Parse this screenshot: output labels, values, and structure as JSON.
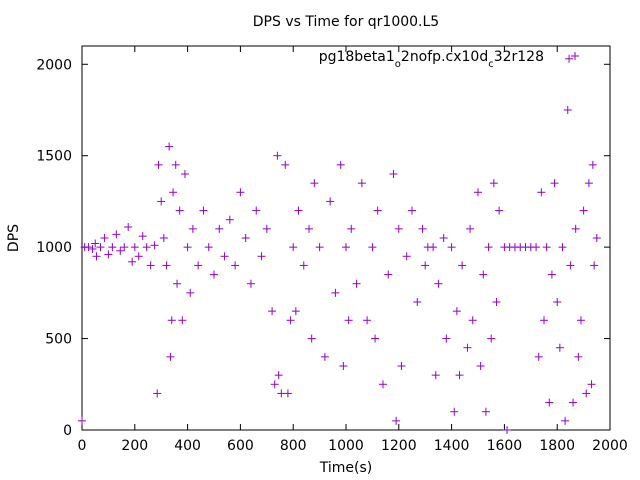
{
  "chart_data": {
    "type": "scatter",
    "title": "DPS vs Time for qr1000.L5",
    "xlabel": "Time(s)",
    "ylabel": "DPS",
    "xlim": [
      0,
      2000
    ],
    "ylim": [
      0,
      2100
    ],
    "xticks": [
      0,
      200,
      400,
      600,
      800,
      1000,
      1200,
      1400,
      1600,
      1800,
      2000
    ],
    "yticks": [
      0,
      500,
      1000,
      1500,
      2000
    ],
    "grid": false,
    "legend_position": "top-right",
    "marker": "+",
    "color": "#9400d3",
    "series": [
      {
        "name_parts": [
          "pg18beta1",
          "o",
          "2nofp.cx10d",
          "c",
          "32r128"
        ],
        "points": [
          [
            0,
            50
          ],
          [
            10,
            1000
          ],
          [
            25,
            1000
          ],
          [
            40,
            990
          ],
          [
            50,
            1020
          ],
          [
            55,
            950
          ],
          [
            70,
            1000
          ],
          [
            85,
            1050
          ],
          [
            100,
            960
          ],
          [
            115,
            1000
          ],
          [
            130,
            1070
          ],
          [
            145,
            980
          ],
          [
            160,
            1000
          ],
          [
            175,
            1110
          ],
          [
            190,
            920
          ],
          [
            200,
            1000
          ],
          [
            215,
            950
          ],
          [
            230,
            1060
          ],
          [
            245,
            1000
          ],
          [
            260,
            900
          ],
          [
            275,
            1010
          ],
          [
            285,
            200
          ],
          [
            290,
            1450
          ],
          [
            300,
            1250
          ],
          [
            310,
            1050
          ],
          [
            320,
            900
          ],
          [
            330,
            1550
          ],
          [
            335,
            400
          ],
          [
            340,
            600
          ],
          [
            345,
            1300
          ],
          [
            355,
            1450
          ],
          [
            360,
            800
          ],
          [
            370,
            1200
          ],
          [
            380,
            600
          ],
          [
            390,
            1400
          ],
          [
            400,
            1000
          ],
          [
            410,
            750
          ],
          [
            420,
            1100
          ],
          [
            440,
            900
          ],
          [
            460,
            1200
          ],
          [
            480,
            1000
          ],
          [
            500,
            850
          ],
          [
            520,
            1100
          ],
          [
            540,
            950
          ],
          [
            560,
            1150
          ],
          [
            580,
            900
          ],
          [
            600,
            1300
          ],
          [
            620,
            1050
          ],
          [
            640,
            800
          ],
          [
            660,
            1200
          ],
          [
            680,
            950
          ],
          [
            700,
            1100
          ],
          [
            720,
            650
          ],
          [
            730,
            250
          ],
          [
            740,
            1500
          ],
          [
            745,
            300
          ],
          [
            755,
            200
          ],
          [
            770,
            1450
          ],
          [
            780,
            200
          ],
          [
            790,
            600
          ],
          [
            800,
            1000
          ],
          [
            810,
            650
          ],
          [
            820,
            1200
          ],
          [
            840,
            900
          ],
          [
            860,
            1100
          ],
          [
            870,
            500
          ],
          [
            880,
            1350
          ],
          [
            900,
            1000
          ],
          [
            920,
            400
          ],
          [
            940,
            1250
          ],
          [
            960,
            750
          ],
          [
            980,
            1450
          ],
          [
            990,
            350
          ],
          [
            1000,
            1000
          ],
          [
            1010,
            600
          ],
          [
            1020,
            1100
          ],
          [
            1040,
            800
          ],
          [
            1060,
            1350
          ],
          [
            1080,
            600
          ],
          [
            1100,
            1000
          ],
          [
            1110,
            500
          ],
          [
            1120,
            1200
          ],
          [
            1140,
            250
          ],
          [
            1160,
            850
          ],
          [
            1180,
            1400
          ],
          [
            1190,
            50
          ],
          [
            1200,
            1100
          ],
          [
            1210,
            350
          ],
          [
            1230,
            950
          ],
          [
            1250,
            1200
          ],
          [
            1270,
            700
          ],
          [
            1290,
            1100
          ],
          [
            1300,
            900
          ],
          [
            1310,
            1000
          ],
          [
            1330,
            1000
          ],
          [
            1340,
            300
          ],
          [
            1350,
            800
          ],
          [
            1370,
            1050
          ],
          [
            1380,
            500
          ],
          [
            1400,
            1000
          ],
          [
            1410,
            100
          ],
          [
            1420,
            650
          ],
          [
            1430,
            300
          ],
          [
            1440,
            900
          ],
          [
            1460,
            450
          ],
          [
            1470,
            1100
          ],
          [
            1480,
            600
          ],
          [
            1500,
            1300
          ],
          [
            1510,
            350
          ],
          [
            1520,
            850
          ],
          [
            1530,
            100
          ],
          [
            1540,
            1000
          ],
          [
            1550,
            500
          ],
          [
            1560,
            1350
          ],
          [
            1570,
            700
          ],
          [
            1580,
            1200
          ],
          [
            1600,
            1000
          ],
          [
            1610,
            0
          ],
          [
            1620,
            1000
          ],
          [
            1640,
            1000
          ],
          [
            1660,
            1000
          ],
          [
            1680,
            1000
          ],
          [
            1700,
            1000
          ],
          [
            1720,
            1000
          ],
          [
            1730,
            400
          ],
          [
            1740,
            1300
          ],
          [
            1750,
            600
          ],
          [
            1760,
            1000
          ],
          [
            1770,
            150
          ],
          [
            1780,
            850
          ],
          [
            1790,
            1350
          ],
          [
            1800,
            700
          ],
          [
            1810,
            450
          ],
          [
            1820,
            1000
          ],
          [
            1830,
            50
          ],
          [
            1840,
            1750
          ],
          [
            1845,
            2030
          ],
          [
            1850,
            900
          ],
          [
            1860,
            150
          ],
          [
            1870,
            1100
          ],
          [
            1880,
            400
          ],
          [
            1890,
            600
          ],
          [
            1900,
            1200
          ],
          [
            1910,
            200
          ],
          [
            1920,
            1350
          ],
          [
            1930,
            250
          ],
          [
            1935,
            1450
          ],
          [
            1940,
            900
          ],
          [
            1950,
            1050
          ]
        ]
      }
    ]
  }
}
